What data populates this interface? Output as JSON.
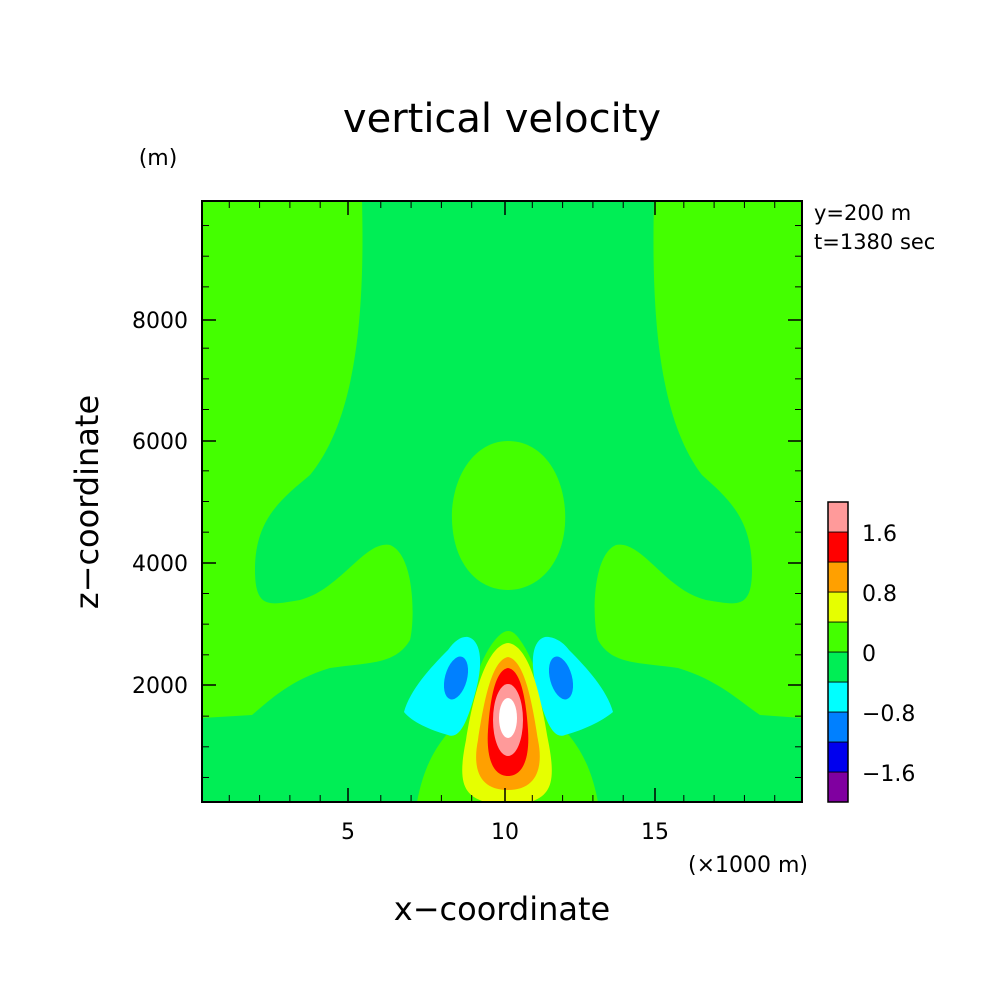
{
  "chart_data": {
    "type": "heatmap",
    "title": "vertical velocity",
    "xlabel": "x−coordinate",
    "ylabel": "z−coordinate",
    "x_units": "(×1000 m)",
    "y_units": "(m)",
    "info": [
      "y=200 m",
      "t=1380 sec"
    ],
    "xlim": [
      0.1,
      19.9
    ],
    "ylim": [
      100,
      9900
    ],
    "x_ticks": [
      5,
      10,
      15
    ],
    "x_tick_labels": [
      "5",
      "10",
      "15"
    ],
    "y_ticks": [
      2000,
      4000,
      6000,
      8000
    ],
    "y_tick_labels": [
      "2000",
      "4000",
      "6000",
      "8000"
    ],
    "grid": false,
    "colorbar": {
      "placement": "right",
      "levels": [
        -2.0,
        -1.6,
        -1.2,
        -0.8,
        -0.4,
        0.0,
        0.4,
        0.8,
        1.2,
        1.6,
        2.0
      ],
      "colors": [
        "#8000a0",
        "#0000ee",
        "#0080ff",
        "#00ffff",
        "#00ee55",
        "#44ff00",
        "#e6ff00",
        "#ffa000",
        "#ff0000",
        "#ff9a9a"
      ],
      "tick_values": [
        -1.6,
        -0.8,
        0,
        0.8,
        1.6
      ],
      "tick_labels": [
        "−1.6",
        "−0.8",
        "0",
        "0.8",
        "1.6"
      ]
    },
    "features": [
      {
        "kind": "updraft core",
        "x": 10.2,
        "z": 1400,
        "w_max": 2.0,
        "colors": [
          "#ffffff",
          "#ff9a9a",
          "#ff0000"
        ]
      },
      {
        "kind": "downdraft",
        "x": 8.5,
        "z": 2000,
        "w_min": -1.2
      },
      {
        "kind": "downdraft",
        "x": 11.9,
        "z": 2000,
        "w_min": -1.2
      },
      {
        "kind": "weak updraft",
        "x": 10.2,
        "z": 4800,
        "w": 0.2
      },
      {
        "kind": "weak updraft band",
        "z_range": [
          3500,
          9900
        ],
        "w": 0.2
      }
    ]
  }
}
